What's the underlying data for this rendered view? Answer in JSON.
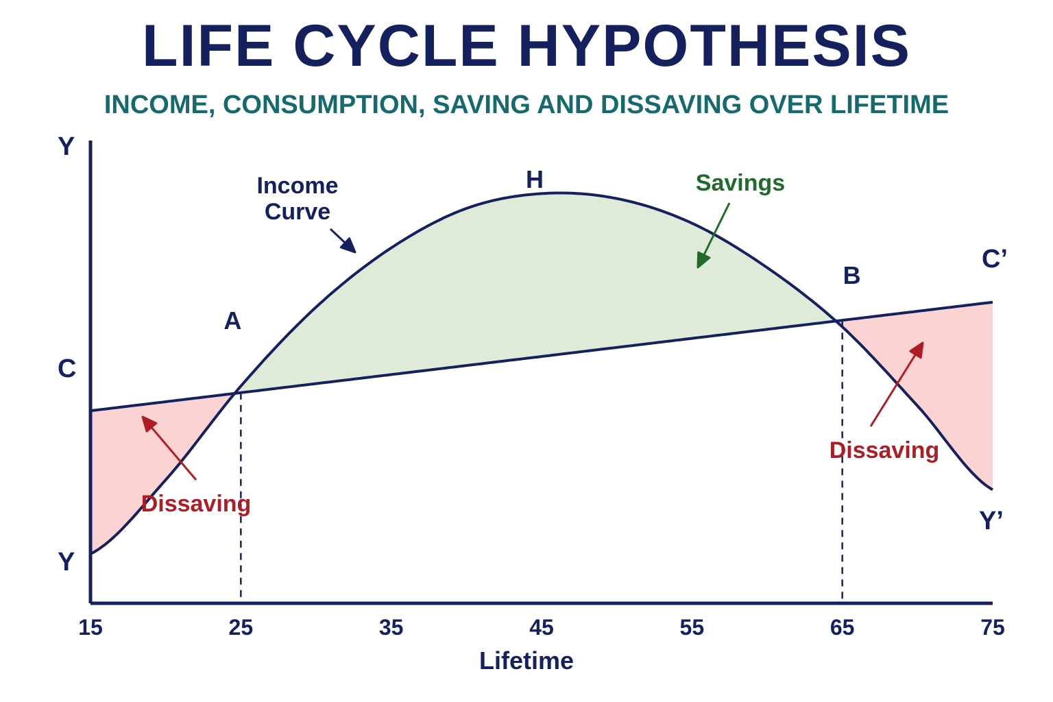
{
  "title": "LIFE CYCLE HYPOTHESIS",
  "subtitle": "INCOME, CONSUMPTION, SAVING AND DISSAVING OVER LIFETIME",
  "colors": {
    "axis": "#14215e",
    "savings_fill": "#dfead8",
    "dissaving_fill": "#fbd3d3",
    "savings_text": "#1f6b2a",
    "dissaving_text": "#b01c24"
  },
  "chart_data": {
    "type": "line",
    "xlabel": "Lifetime",
    "ylabel": "Y",
    "x_ticks": [
      15,
      25,
      35,
      45,
      55,
      65,
      75
    ],
    "xlim": [
      15,
      75
    ],
    "series": [
      {
        "name": "Income Curve",
        "x": [
          15,
          20,
          25,
          30,
          35,
          40,
          45,
          50,
          55,
          60,
          65,
          70,
          75
        ],
        "y": [
          1.0,
          2.5,
          4.4,
          6.0,
          7.2,
          8.0,
          8.3,
          8.2,
          7.7,
          6.8,
          5.6,
          4.0,
          2.3
        ]
      },
      {
        "name": "Consumption",
        "x": [
          15,
          75
        ],
        "y": [
          3.9,
          6.1
        ]
      }
    ],
    "points": [
      {
        "label": "A",
        "x": 25
      },
      {
        "label": "H",
        "x": 45
      },
      {
        "label": "B",
        "x": 65
      }
    ],
    "line_end_labels": {
      "income_start": "Y",
      "income_end": "Y’",
      "consumption_start": "C",
      "consumption_end": "C’"
    },
    "annotations": {
      "income_curve": [
        "Income",
        "Curve"
      ],
      "savings": "Savings",
      "dissaving_left": "Dissaving",
      "dissaving_right": "Dissaving"
    }
  }
}
